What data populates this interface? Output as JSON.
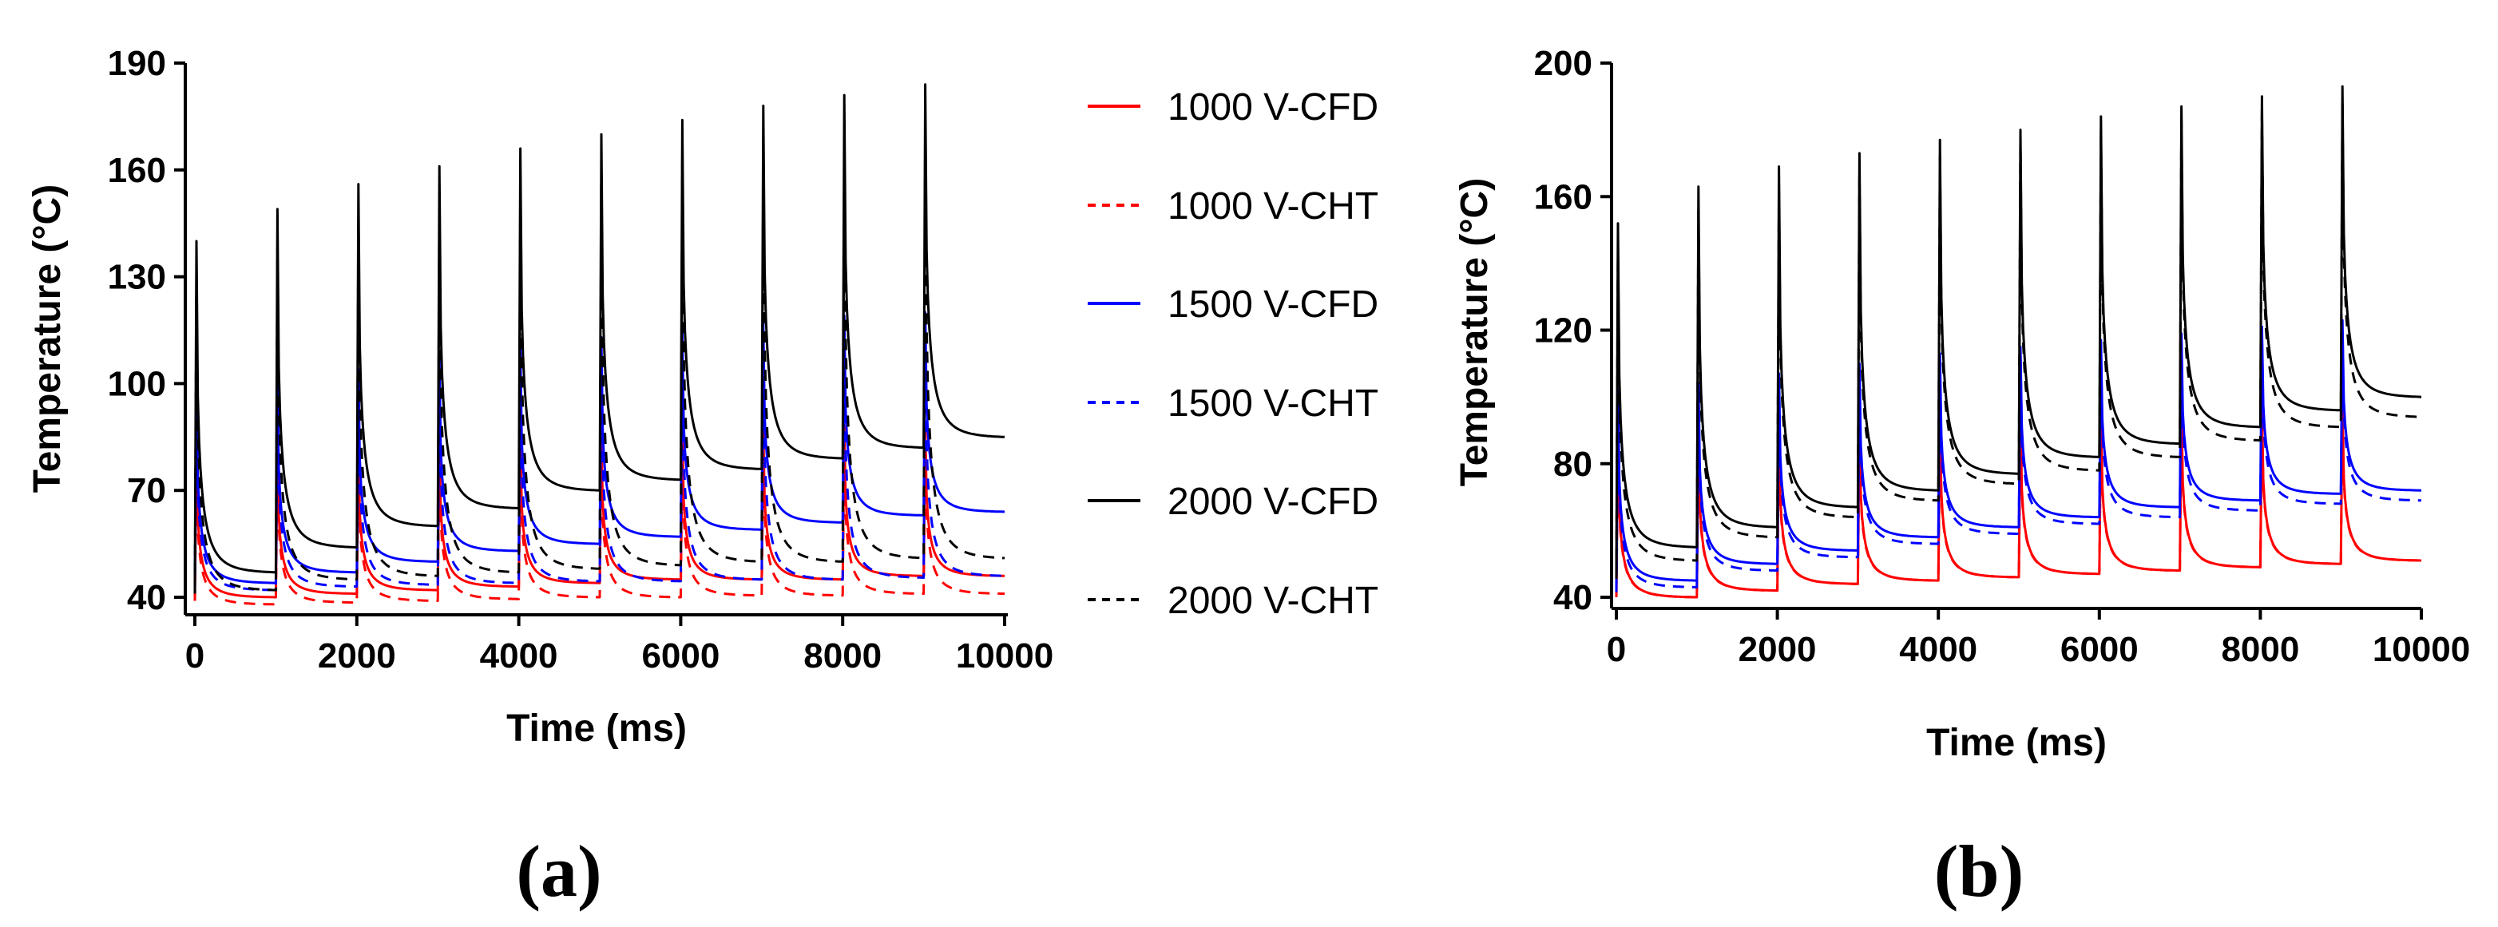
{
  "colors": {
    "1000": "#ff0000",
    "1500": "#0000ff",
    "2000": "#000000"
  },
  "legend": [
    {
      "label": "1000 V-CFD",
      "voltage": "1000",
      "dash": "solid"
    },
    {
      "label": "1000 V-CHT",
      "voltage": "1000",
      "dash": "dashed"
    },
    {
      "label": "1500 V-CFD",
      "voltage": "1500",
      "dash": "solid"
    },
    {
      "label": "1500 V-CHT",
      "voltage": "1500",
      "dash": "dashed"
    },
    {
      "label": "2000 V-CFD",
      "voltage": "2000",
      "dash": "solid"
    },
    {
      "label": "2000 V-CHT",
      "voltage": "2000",
      "dash": "dashed"
    }
  ],
  "chart_data": [
    {
      "type": "line",
      "panel_label": "(a)",
      "title": "",
      "xlabel": "Time (ms)",
      "ylabel": "Temperature (°C)",
      "xlim": [
        0,
        10000
      ],
      "ylim": [
        40,
        190
      ],
      "xticks": [
        0,
        2000,
        4000,
        6000,
        8000,
        10000
      ],
      "yticks": [
        40,
        70,
        100,
        130,
        160,
        190
      ],
      "pulse_times": [
        0,
        1000,
        2000,
        3000,
        4000,
        5000,
        6000,
        7000,
        8000,
        9000
      ],
      "series": [
        {
          "name": "1000 V-CFD",
          "voltage": "1000",
          "dash": "solid",
          "peaks": [
            82,
            82,
            83,
            84,
            85,
            86,
            87,
            87,
            88,
            88
          ],
          "troughs": [
            40,
            41,
            42,
            43,
            44,
            45,
            45,
            45,
            46,
            46
          ]
        },
        {
          "name": "1000 V-CHT",
          "voltage": "1000",
          "dash": "dashed",
          "peaks": [
            78,
            79,
            80,
            81,
            82,
            83,
            83,
            84,
            84,
            85
          ],
          "troughs": [
            38,
            38.5,
            39,
            39.5,
            40,
            40,
            40.5,
            40.5,
            41,
            41
          ]
        },
        {
          "name": "1500 V-CFD",
          "voltage": "1500",
          "dash": "solid",
          "peaks": [
            100,
            102,
            104,
            107,
            110,
            113,
            115,
            117,
            119,
            120
          ],
          "troughs": [
            44,
            47,
            50,
            53,
            55,
            57,
            59,
            61,
            63,
            64
          ]
        },
        {
          "name": "1500 V-CHT",
          "voltage": "1500",
          "dash": "dashed",
          "peaks": [
            95,
            98,
            100,
            103,
            105,
            108,
            110,
            112,
            114,
            115
          ],
          "troughs": [
            42,
            43,
            43.5,
            44,
            44.5,
            44.5,
            45,
            45,
            45.5,
            46
          ]
        },
        {
          "name": "2000 V-CFD",
          "voltage": "2000",
          "dash": "solid",
          "peaks": [
            140,
            149,
            156,
            161,
            166,
            170,
            174,
            178,
            181,
            184
          ],
          "troughs": [
            47,
            54,
            60,
            65,
            70,
            73,
            76,
            79,
            82,
            85
          ]
        },
        {
          "name": "2000 V-CHT",
          "voltage": "2000",
          "dash": "dashed",
          "peaks": [
            130,
            138,
            144,
            150,
            155,
            160,
            163,
            166,
            169,
            172
          ],
          "troughs": [
            42,
            45,
            46,
            47,
            48,
            49,
            50,
            50,
            51,
            51
          ]
        }
      ]
    },
    {
      "type": "line",
      "panel_label": "(b)",
      "title": "",
      "xlabel": "Time (ms)",
      "ylabel": "Temperature (°C)",
      "xlim": [
        0,
        10000
      ],
      "ylim": [
        40,
        200
      ],
      "xticks": [
        0,
        2000,
        4000,
        6000,
        8000,
        10000
      ],
      "yticks": [
        40,
        80,
        120,
        160,
        200
      ],
      "pulse_times": [
        0,
        1000,
        2000,
        3000,
        4000,
        5000,
        6000,
        7000,
        8000,
        9000
      ],
      "series": [
        {
          "name": "1000 V-CFD",
          "voltage": "1000",
          "dash": "solid",
          "peaks": [
            90,
            91,
            92,
            93,
            94,
            95,
            96,
            97,
            97,
            98
          ],
          "troughs": [
            40,
            42,
            44,
            45,
            46,
            47,
            48,
            49,
            50,
            51
          ]
        },
        {
          "name": "1000 V-CHT",
          "voltage": "1000",
          "dash": "dashed",
          "peaks": [
            88,
            89,
            90,
            91,
            92,
            93,
            94,
            95,
            95,
            96
          ],
          "troughs": [
            40,
            42,
            44,
            45,
            46,
            47,
            48,
            49,
            50,
            51
          ]
        },
        {
          "name": "1500 V-CFD",
          "voltage": "1500",
          "dash": "solid",
          "peaks": [
            102,
            104,
            107,
            110,
            113,
            115,
            117,
            119,
            121,
            123
          ],
          "troughs": [
            45,
            50,
            54,
            58,
            61,
            64,
            67,
            69,
            71,
            72
          ]
        },
        {
          "name": "1500 V-CHT",
          "voltage": "1500",
          "dash": "dashed",
          "peaks": [
            98,
            101,
            104,
            107,
            110,
            112,
            114,
            116,
            118,
            120
          ],
          "troughs": [
            43,
            48,
            52,
            56,
            59,
            62,
            64,
            66,
            68,
            69
          ]
        },
        {
          "name": "2000 V-CFD",
          "voltage": "2000",
          "dash": "solid",
          "peaks": [
            152,
            163,
            169,
            173,
            177,
            180,
            184,
            187,
            190,
            193
          ],
          "troughs": [
            55,
            61,
            67,
            72,
            77,
            82,
            86,
            91,
            96,
            100
          ]
        },
        {
          "name": "2000 V-CHT",
          "voltage": "2000",
          "dash": "dashed",
          "peaks": [
            145,
            156,
            162,
            167,
            172,
            176,
            180,
            183,
            186,
            189
          ],
          "troughs": [
            51,
            58,
            64,
            69,
            74,
            78,
            82,
            87,
            91,
            94
          ]
        }
      ]
    }
  ]
}
